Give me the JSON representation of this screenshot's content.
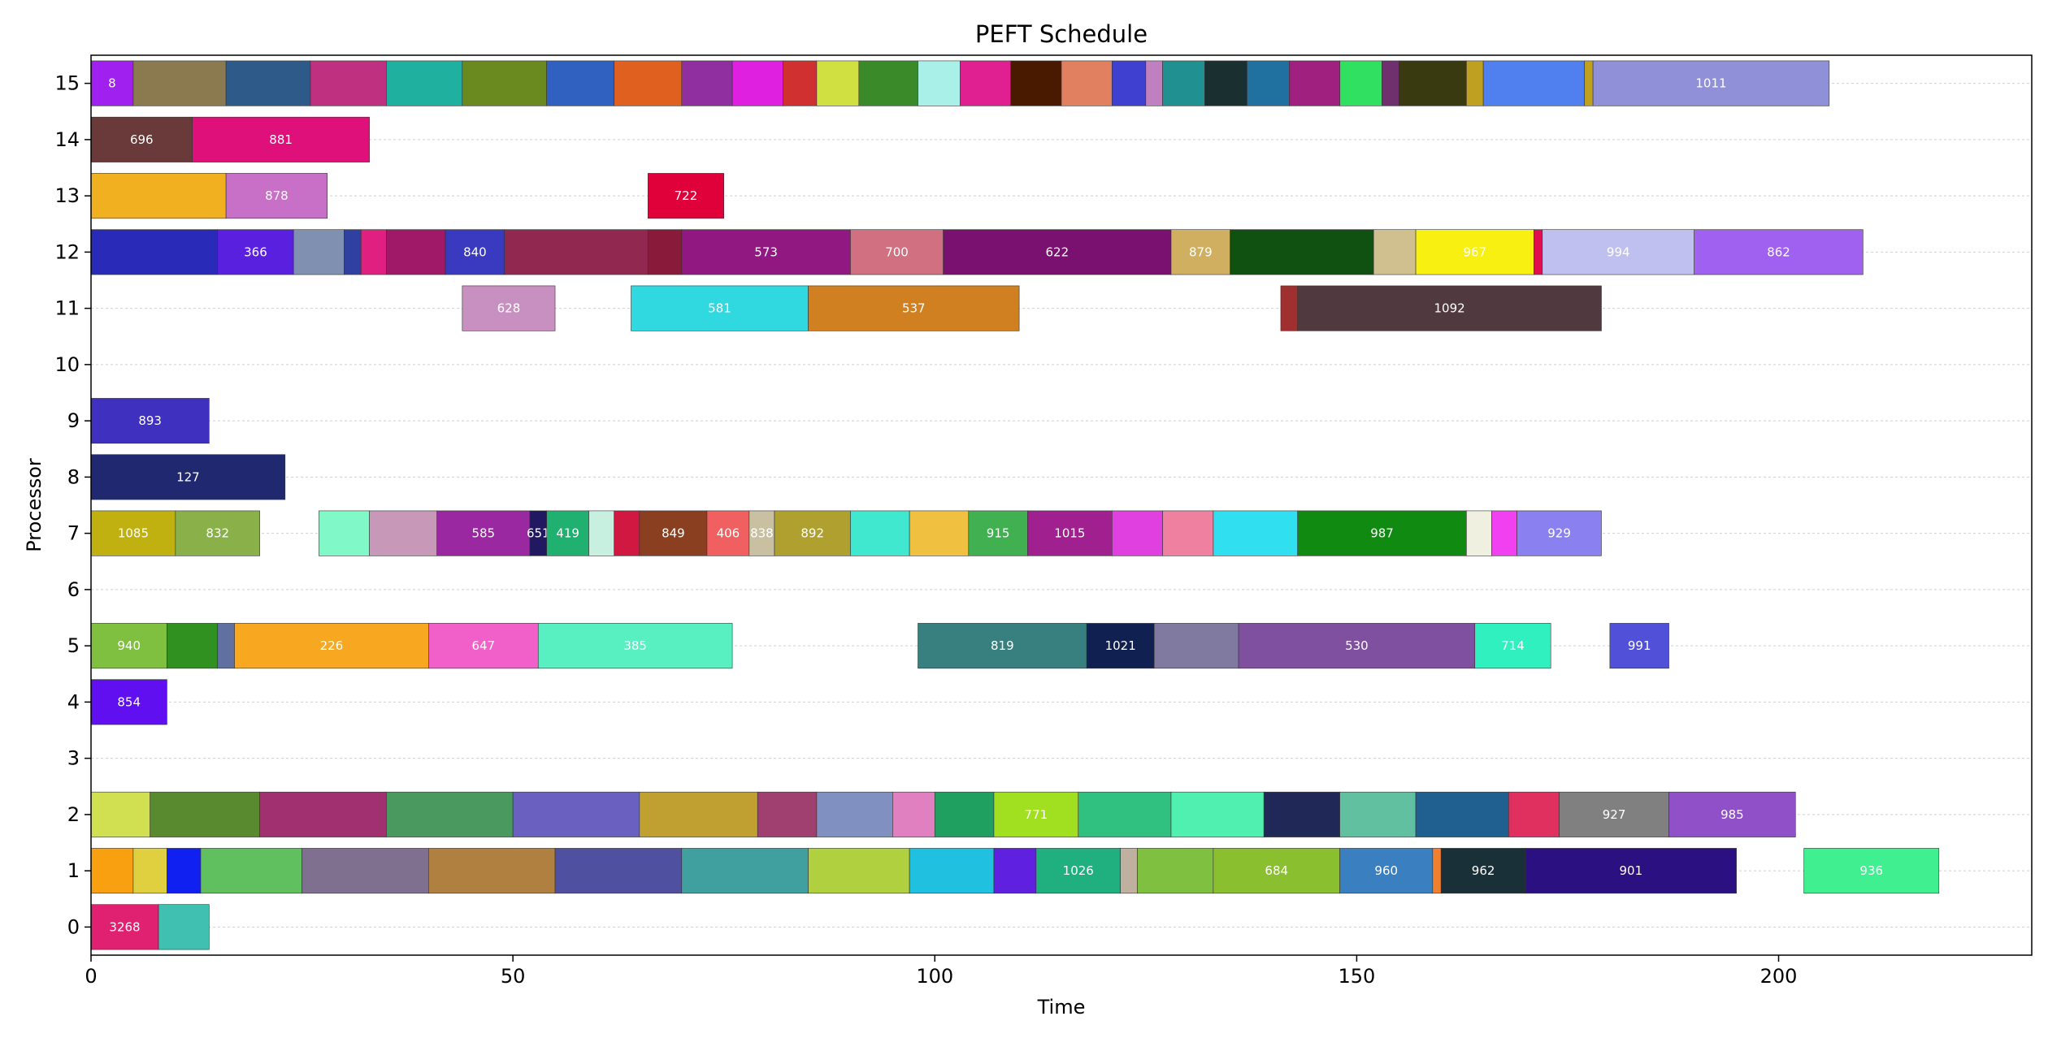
{
  "chart_data": {
    "type": "gantt",
    "title": "PEFT Schedule",
    "xlabel": "Time",
    "ylabel": "Processor",
    "xlim": [
      0,
      230
    ],
    "ylim": [
      -0.5,
      15.5
    ],
    "xticks": [
      0,
      50,
      100,
      150,
      200
    ],
    "yticks": [
      0,
      1,
      2,
      3,
      4,
      5,
      6,
      7,
      8,
      9,
      10,
      11,
      12,
      13,
      14,
      15
    ],
    "grid": "horizontal",
    "tasks": [
      {
        "proc": 15,
        "start": 0,
        "end": 5,
        "label": "8",
        "color": "#a020f0"
      },
      {
        "proc": 15,
        "start": 5,
        "end": 16,
        "label": "",
        "color": "#8b7a50"
      },
      {
        "proc": 15,
        "start": 16,
        "end": 26,
        "label": "",
        "color": "#2e5a8a"
      },
      {
        "proc": 15,
        "start": 26,
        "end": 35,
        "label": "",
        "color": "#c03080"
      },
      {
        "proc": 15,
        "start": 35,
        "end": 44,
        "label": "",
        "color": "#20b0a0"
      },
      {
        "proc": 15,
        "start": 44,
        "end": 54,
        "label": "",
        "color": "#6a8a20"
      },
      {
        "proc": 15,
        "start": 54,
        "end": 62,
        "label": "",
        "color": "#3060c0"
      },
      {
        "proc": 15,
        "start": 62,
        "end": 70,
        "label": "",
        "color": "#e06020"
      },
      {
        "proc": 15,
        "start": 70,
        "end": 76,
        "label": "",
        "color": "#9030a0"
      },
      {
        "proc": 15,
        "start": 76,
        "end": 82,
        "label": "",
        "color": "#e020e0"
      },
      {
        "proc": 15,
        "start": 82,
        "end": 86,
        "label": "",
        "color": "#d03030"
      },
      {
        "proc": 15,
        "start": 86,
        "end": 91,
        "label": "",
        "color": "#d0e040"
      },
      {
        "proc": 15,
        "start": 91,
        "end": 98,
        "label": "",
        "color": "#3a8a2a"
      },
      {
        "proc": 15,
        "start": 98,
        "end": 103,
        "label": "",
        "color": "#a8f0e8"
      },
      {
        "proc": 15,
        "start": 103,
        "end": 109,
        "label": "",
        "color": "#e02090"
      },
      {
        "proc": 15,
        "start": 109,
        "end": 115,
        "label": "",
        "color": "#4a1a00"
      },
      {
        "proc": 15,
        "start": 115,
        "end": 121,
        "label": "",
        "color": "#e08060"
      },
      {
        "proc": 15,
        "start": 121,
        "end": 125,
        "label": "",
        "color": "#4040d0"
      },
      {
        "proc": 15,
        "start": 125,
        "end": 127,
        "label": "",
        "color": "#c080c0"
      },
      {
        "proc": 15,
        "start": 127,
        "end": 132,
        "label": "",
        "color": "#209090"
      },
      {
        "proc": 15,
        "start": 132,
        "end": 137,
        "label": "",
        "color": "#1a3030"
      },
      {
        "proc": 15,
        "start": 137,
        "end": 142,
        "label": "",
        "color": "#2070a0"
      },
      {
        "proc": 15,
        "start": 142,
        "end": 148,
        "label": "",
        "color": "#a02080"
      },
      {
        "proc": 15,
        "start": 148,
        "end": 153,
        "label": "",
        "color": "#30e060"
      },
      {
        "proc": 15,
        "start": 153,
        "end": 155,
        "label": "",
        "color": "#703070"
      },
      {
        "proc": 15,
        "start": 155,
        "end": 163,
        "label": "",
        "color": "#3a3a10"
      },
      {
        "proc": 15,
        "start": 163,
        "end": 165,
        "label": "",
        "color": "#c0a020"
      },
      {
        "proc": 15,
        "start": 165,
        "end": 177,
        "label": "",
        "color": "#5080f0"
      },
      {
        "proc": 15,
        "start": 177,
        "end": 178,
        "label": "",
        "color": "#c0a020"
      },
      {
        "proc": 15,
        "start": 178,
        "end": 206,
        "label": "1011",
        "color": "#9090d8"
      },
      {
        "proc": 14,
        "start": 0,
        "end": 12,
        "label": "696",
        "color": "#6a3a3a"
      },
      {
        "proc": 14,
        "start": 12,
        "end": 33,
        "label": "881",
        "color": "#e0107a"
      },
      {
        "proc": 13,
        "start": 0,
        "end": 16,
        "label": "",
        "color": "#f0b020"
      },
      {
        "proc": 13,
        "start": 16,
        "end": 28,
        "label": "878",
        "color": "#c870c8"
      },
      {
        "proc": 13,
        "start": 66,
        "end": 75,
        "label": "722",
        "color": "#e0003a"
      },
      {
        "proc": 12,
        "start": 0,
        "end": 15,
        "label": "",
        "color": "#2a2ab8"
      },
      {
        "proc": 12,
        "start": 15,
        "end": 24,
        "label": "366",
        "color": "#5a20e0"
      },
      {
        "proc": 12,
        "start": 24,
        "end": 30,
        "label": "",
        "color": "#8090b0"
      },
      {
        "proc": 12,
        "start": 30,
        "end": 32,
        "label": "",
        "color": "#3040a0"
      },
      {
        "proc": 12,
        "start": 32,
        "end": 35,
        "label": "",
        "color": "#e02080"
      },
      {
        "proc": 12,
        "start": 35,
        "end": 42,
        "label": "",
        "color": "#a01868"
      },
      {
        "proc": 12,
        "start": 42,
        "end": 49,
        "label": "840",
        "color": "#3a3ac0"
      },
      {
        "proc": 12,
        "start": 49,
        "end": 66,
        "label": "",
        "color": "#902850"
      },
      {
        "proc": 12,
        "start": 66,
        "end": 70,
        "label": "",
        "color": "#8a1a3a"
      },
      {
        "proc": 12,
        "start": 70,
        "end": 90,
        "label": "573",
        "color": "#901880"
      },
      {
        "proc": 12,
        "start": 90,
        "end": 101,
        "label": "700",
        "color": "#d07080"
      },
      {
        "proc": 12,
        "start": 101,
        "end": 128,
        "label": "622",
        "color": "#7a1070"
      },
      {
        "proc": 12,
        "start": 128,
        "end": 135,
        "label": "879",
        "color": "#d0b060"
      },
      {
        "proc": 12,
        "start": 135,
        "end": 152,
        "label": "",
        "color": "#105010"
      },
      {
        "proc": 12,
        "start": 152,
        "end": 157,
        "label": "",
        "color": "#d0c090"
      },
      {
        "proc": 12,
        "start": 157,
        "end": 171,
        "label": "967",
        "color": "#f8f010"
      },
      {
        "proc": 12,
        "start": 171,
        "end": 172,
        "label": "",
        "color": "#e01050"
      },
      {
        "proc": 12,
        "start": 172,
        "end": 190,
        "label": "994",
        "color": "#c0c0f0"
      },
      {
        "proc": 12,
        "start": 190,
        "end": 210,
        "label": "862",
        "color": "#a060f0"
      },
      {
        "proc": 11,
        "start": 44,
        "end": 55,
        "label": "628",
        "color": "#c890c0"
      },
      {
        "proc": 11,
        "start": 64,
        "end": 85,
        "label": "581",
        "color": "#30d8e0"
      },
      {
        "proc": 11,
        "start": 85,
        "end": 110,
        "label": "537",
        "color": "#d08020"
      },
      {
        "proc": 11,
        "start": 141,
        "end": 143,
        "label": "",
        "color": "#a03030"
      },
      {
        "proc": 11,
        "start": 143,
        "end": 179,
        "label": "1092",
        "color": "#503a40"
      },
      {
        "proc": 9,
        "start": 0,
        "end": 14,
        "label": "893",
        "color": "#4030c0"
      },
      {
        "proc": 8,
        "start": 0,
        "end": 23,
        "label": "127",
        "color": "#202870"
      },
      {
        "proc": 7,
        "start": 0,
        "end": 10,
        "label": "1085",
        "color": "#c0b010"
      },
      {
        "proc": 7,
        "start": 10,
        "end": 20,
        "label": "832",
        "color": "#8ab04a"
      },
      {
        "proc": 7,
        "start": 27,
        "end": 33,
        "label": "",
        "color": "#80f8c8"
      },
      {
        "proc": 7,
        "start": 33,
        "end": 41,
        "label": "",
        "color": "#c898b8"
      },
      {
        "proc": 7,
        "start": 41,
        "end": 52,
        "label": "585",
        "color": "#9a28a0"
      },
      {
        "proc": 7,
        "start": 52,
        "end": 54,
        "label": "651",
        "color": "#201860"
      },
      {
        "proc": 7,
        "start": 54,
        "end": 59,
        "label": "419",
        "color": "#20b070"
      },
      {
        "proc": 7,
        "start": 59,
        "end": 62,
        "label": "",
        "color": "#c8f0e0"
      },
      {
        "proc": 7,
        "start": 62,
        "end": 65,
        "label": "",
        "color": "#d01840"
      },
      {
        "proc": 7,
        "start": 65,
        "end": 73,
        "label": "849",
        "color": "#8a4020"
      },
      {
        "proc": 7,
        "start": 73,
        "end": 78,
        "label": "406",
        "color": "#f06060"
      },
      {
        "proc": 7,
        "start": 78,
        "end": 81,
        "label": "838",
        "color": "#c8c0a0"
      },
      {
        "proc": 7,
        "start": 81,
        "end": 90,
        "label": "892",
        "color": "#b0a030"
      },
      {
        "proc": 7,
        "start": 90,
        "end": 97,
        "label": "",
        "color": "#40e8d0"
      },
      {
        "proc": 7,
        "start": 97,
        "end": 104,
        "label": "",
        "color": "#f0c040"
      },
      {
        "proc": 7,
        "start": 104,
        "end": 111,
        "label": "915",
        "color": "#40b050"
      },
      {
        "proc": 7,
        "start": 111,
        "end": 121,
        "label": "1015",
        "color": "#a02090"
      },
      {
        "proc": 7,
        "start": 121,
        "end": 127,
        "label": "",
        "color": "#e040e0"
      },
      {
        "proc": 7,
        "start": 127,
        "end": 133,
        "label": "",
        "color": "#f080a0"
      },
      {
        "proc": 7,
        "start": 133,
        "end": 143,
        "label": "",
        "color": "#30e0f0"
      },
      {
        "proc": 7,
        "start": 143,
        "end": 163,
        "label": "987",
        "color": "#108a10"
      },
      {
        "proc": 7,
        "start": 163,
        "end": 166,
        "label": "",
        "color": "#f0f0e0"
      },
      {
        "proc": 7,
        "start": 166,
        "end": 169,
        "label": "",
        "color": "#f040f0"
      },
      {
        "proc": 7,
        "start": 169,
        "end": 179,
        "label": "929",
        "color": "#8a80f0"
      },
      {
        "proc": 5,
        "start": 0,
        "end": 9,
        "label": "940",
        "color": "#80c040"
      },
      {
        "proc": 5,
        "start": 9,
        "end": 15,
        "label": "",
        "color": "#309020"
      },
      {
        "proc": 5,
        "start": 15,
        "end": 17,
        "label": "",
        "color": "#6070a0"
      },
      {
        "proc": 5,
        "start": 17,
        "end": 40,
        "label": "226",
        "color": "#f8a820"
      },
      {
        "proc": 5,
        "start": 40,
        "end": 53,
        "label": "647",
        "color": "#f060c8"
      },
      {
        "proc": 5,
        "start": 53,
        "end": 76,
        "label": "385",
        "color": "#58f0c0"
      },
      {
        "proc": 5,
        "start": 98,
        "end": 118,
        "label": "819",
        "color": "#388080"
      },
      {
        "proc": 5,
        "start": 118,
        "end": 126,
        "label": "1021",
        "color": "#102050"
      },
      {
        "proc": 5,
        "start": 126,
        "end": 136,
        "label": "",
        "color": "#807aa0"
      },
      {
        "proc": 5,
        "start": 136,
        "end": 164,
        "label": "530",
        "color": "#8050a0"
      },
      {
        "proc": 5,
        "start": 164,
        "end": 173,
        "label": "714",
        "color": "#30f0c0"
      },
      {
        "proc": 5,
        "start": 180,
        "end": 187,
        "label": "991",
        "color": "#5050d8"
      },
      {
        "proc": 4,
        "start": 0,
        "end": 9,
        "label": "854",
        "color": "#6010f0"
      },
      {
        "proc": 2,
        "start": 0,
        "end": 7,
        "label": "",
        "color": "#d0e050"
      },
      {
        "proc": 2,
        "start": 7,
        "end": 20,
        "label": "",
        "color": "#5a8a30"
      },
      {
        "proc": 2,
        "start": 20,
        "end": 35,
        "label": "",
        "color": "#a03070"
      },
      {
        "proc": 2,
        "start": 35,
        "end": 50,
        "label": "",
        "color": "#4a9a60"
      },
      {
        "proc": 2,
        "start": 50,
        "end": 65,
        "label": "",
        "color": "#6a60c0"
      },
      {
        "proc": 2,
        "start": 65,
        "end": 79,
        "label": "",
        "color": "#c0a030"
      },
      {
        "proc": 2,
        "start": 79,
        "end": 86,
        "label": "",
        "color": "#a04070"
      },
      {
        "proc": 2,
        "start": 86,
        "end": 95,
        "label": "",
        "color": "#8090c0"
      },
      {
        "proc": 2,
        "start": 95,
        "end": 100,
        "label": "",
        "color": "#e080c0"
      },
      {
        "proc": 2,
        "start": 100,
        "end": 107,
        "label": "",
        "color": "#20a060"
      },
      {
        "proc": 2,
        "start": 107,
        "end": 117,
        "label": "771",
        "color": "#a0e020"
      },
      {
        "proc": 2,
        "start": 117,
        "end": 128,
        "label": "",
        "color": "#30c080"
      },
      {
        "proc": 2,
        "start": 128,
        "end": 139,
        "label": "",
        "color": "#50f0b0"
      },
      {
        "proc": 2,
        "start": 139,
        "end": 148,
        "label": "",
        "color": "#202858"
      },
      {
        "proc": 2,
        "start": 148,
        "end": 157,
        "label": "",
        "color": "#60c0a0"
      },
      {
        "proc": 2,
        "start": 157,
        "end": 168,
        "label": "",
        "color": "#206090"
      },
      {
        "proc": 2,
        "start": 168,
        "end": 174,
        "label": "",
        "color": "#e03060"
      },
      {
        "proc": 2,
        "start": 174,
        "end": 187,
        "label": "927",
        "color": "#808080"
      },
      {
        "proc": 2,
        "start": 187,
        "end": 202,
        "label": "985",
        "color": "#9050c8"
      },
      {
        "proc": 1,
        "start": 0,
        "end": 5,
        "label": "",
        "color": "#f8a010"
      },
      {
        "proc": 1,
        "start": 5,
        "end": 9,
        "label": "",
        "color": "#e0d040"
      },
      {
        "proc": 1,
        "start": 9,
        "end": 13,
        "label": "",
        "color": "#1020f0"
      },
      {
        "proc": 1,
        "start": 13,
        "end": 25,
        "label": "",
        "color": "#60c060"
      },
      {
        "proc": 1,
        "start": 25,
        "end": 40,
        "label": "",
        "color": "#807090"
      },
      {
        "proc": 1,
        "start": 40,
        "end": 55,
        "label": "",
        "color": "#b08040"
      },
      {
        "proc": 1,
        "start": 55,
        "end": 70,
        "label": "",
        "color": "#5050a0"
      },
      {
        "proc": 1,
        "start": 70,
        "end": 85,
        "label": "",
        "color": "#40a0a0"
      },
      {
        "proc": 1,
        "start": 85,
        "end": 97,
        "label": "",
        "color": "#b0d040"
      },
      {
        "proc": 1,
        "start": 97,
        "end": 107,
        "label": "",
        "color": "#20c0e0"
      },
      {
        "proc": 1,
        "start": 107,
        "end": 112,
        "label": "",
        "color": "#6020e0"
      },
      {
        "proc": 1,
        "start": 112,
        "end": 122,
        "label": "1026",
        "color": "#20b080"
      },
      {
        "proc": 1,
        "start": 122,
        "end": 124,
        "label": "",
        "color": "#c0b0a0"
      },
      {
        "proc": 1,
        "start": 124,
        "end": 133,
        "label": "",
        "color": "#80c040"
      },
      {
        "proc": 1,
        "start": 133,
        "end": 148,
        "label": "684",
        "color": "#8ac030"
      },
      {
        "proc": 1,
        "start": 148,
        "end": 159,
        "label": "960",
        "color": "#3a80c0"
      },
      {
        "proc": 1,
        "start": 159,
        "end": 160,
        "label": "",
        "color": "#f08030"
      },
      {
        "proc": 1,
        "start": 160,
        "end": 170,
        "label": "962",
        "color": "#1a3038"
      },
      {
        "proc": 1,
        "start": 170,
        "end": 195,
        "label": "901",
        "color": "#2a1080"
      },
      {
        "proc": 1,
        "start": 203,
        "end": 219,
        "label": "936",
        "color": "#40f090"
      },
      {
        "proc": 0,
        "start": 0,
        "end": 8,
        "label": "3268",
        "color": "#e02070"
      },
      {
        "proc": 0,
        "start": 8,
        "end": 14,
        "label": "",
        "color": "#40c0b0"
      }
    ]
  }
}
